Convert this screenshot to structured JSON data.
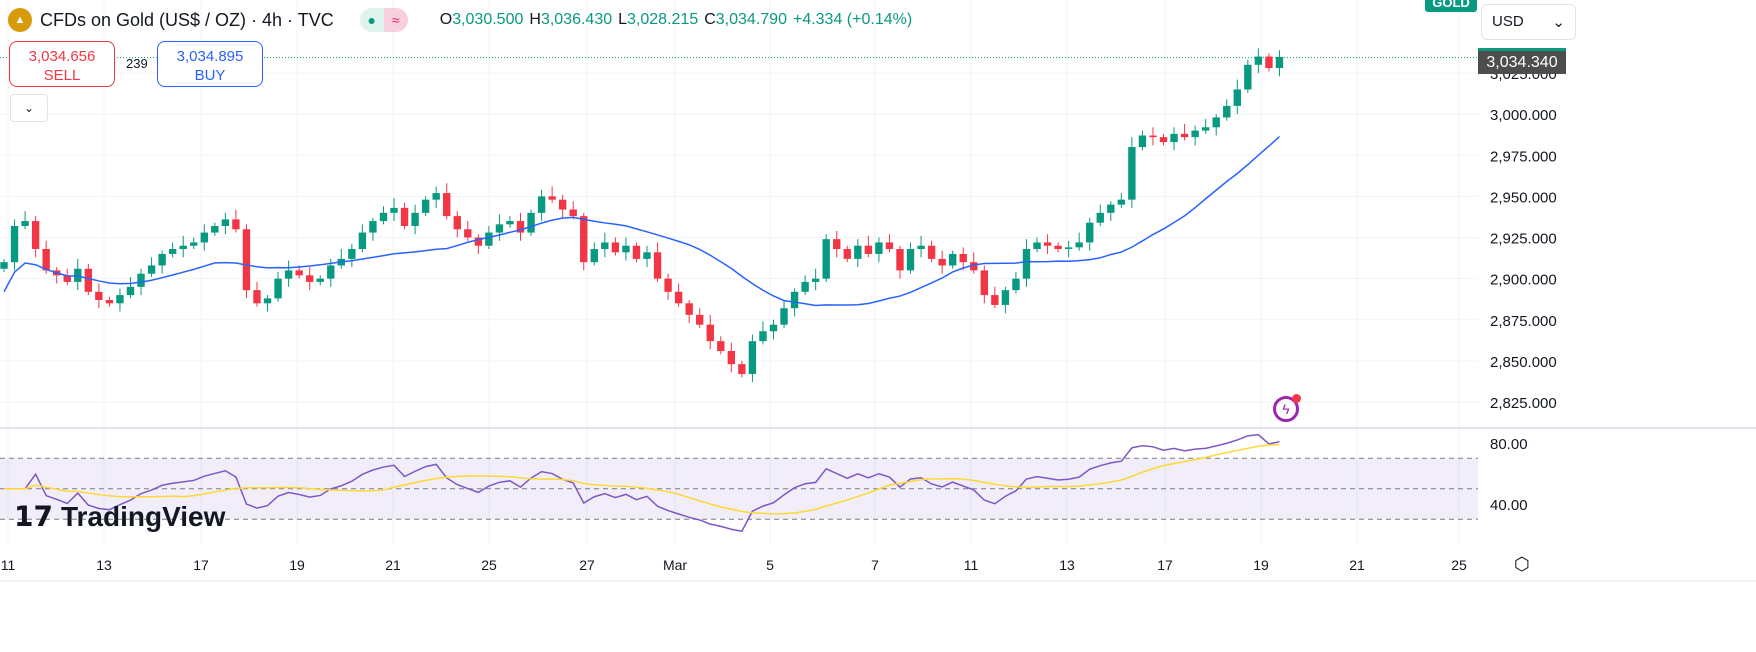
{
  "header": {
    "symbol": "CFDs on Gold (US$ / OZ) · 4h · TVC",
    "open_label": "O",
    "open": "3,030.500",
    "high_label": "H",
    "high": "3,036.430",
    "low_label": "L",
    "low": "3,028.215",
    "close_label": "C",
    "close": "3,034.790",
    "change": "+4.334 (+0.14%)"
  },
  "trade": {
    "sell_price": "3,034.656",
    "sell_label": "SELL",
    "buy_price": "3,034.895",
    "buy_label": "BUY",
    "spread": "239"
  },
  "currency": "USD",
  "symbol_tag": "GOLD",
  "last_price": "3,034.340",
  "brand": "TradingView",
  "colors": {
    "up": "#089981",
    "down": "#f23645",
    "ma": "#2962ff",
    "rsi": "#7e57c2",
    "rsi_ma": "#fdd835"
  },
  "chart_data": {
    "type": "candlestick",
    "price_axis": [
      "3,025.000",
      "3,000.000",
      "2,975.000",
      "2,950.000",
      "2,925.000",
      "2,900.000",
      "2,875.000",
      "2,850.000",
      "2,825.000"
    ],
    "price_values": [
      3025,
      3000,
      2975,
      2950,
      2925,
      2900,
      2875,
      2850,
      2825
    ],
    "ylim": [
      2813,
      3046
    ],
    "rsi_axis": [
      "80.00",
      "40.00"
    ],
    "rsi_levels": [
      70,
      50,
      30
    ],
    "x_labels": [
      "11",
      "13",
      "17",
      "19",
      "21",
      "25",
      "27",
      "Mar",
      "5",
      "7",
      "11",
      "13",
      "17",
      "19",
      "21",
      "25"
    ],
    "ma_period": 20,
    "close": [
      2910,
      2932,
      2935,
      2918,
      2905,
      2902,
      2898,
      2906,
      2892,
      2887,
      2885,
      2890,
      2895,
      2903,
      2908,
      2915,
      2918,
      2920,
      2922,
      2928,
      2932,
      2936,
      2930,
      2893,
      2885,
      2888,
      2900,
      2905,
      2902,
      2898,
      2900,
      2908,
      2912,
      2918,
      2928,
      2935,
      2940,
      2943,
      2932,
      2940,
      2948,
      2952,
      2938,
      2930,
      2925,
      2920,
      2928,
      2933,
      2935,
      2928,
      2940,
      2950,
      2948,
      2942,
      2938,
      2910,
      2918,
      2922,
      2916,
      2920,
      2912,
      2916,
      2900,
      2892,
      2885,
      2878,
      2872,
      2862,
      2856,
      2848,
      2842,
      2862,
      2868,
      2872,
      2882,
      2892,
      2898,
      2900,
      2924,
      2918,
      2912,
      2920,
      2915,
      2922,
      2918,
      2905,
      2918,
      2920,
      2912,
      2908,
      2915,
      2910,
      2905,
      2890,
      2884,
      2893,
      2900,
      2918,
      2922,
      2920,
      2918,
      2919,
      2922,
      2934,
      2940,
      2945,
      2948,
      2980,
      2987,
      2986,
      2983,
      2988,
      2986,
      2990,
      2992,
      2998,
      3005,
      3015,
      3030,
      3035,
      3028,
      3034.79
    ]
  }
}
